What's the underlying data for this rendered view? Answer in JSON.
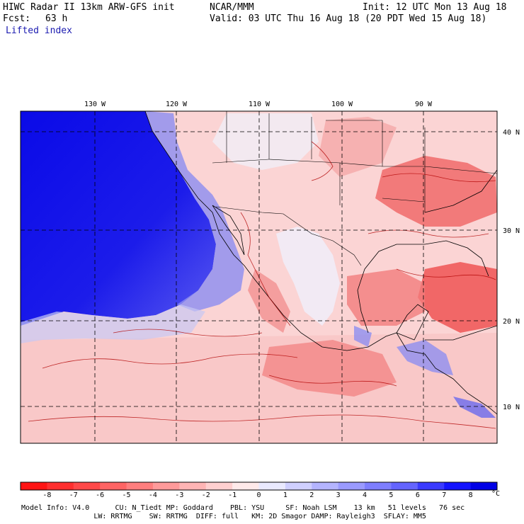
{
  "header": {
    "model": "HIWC Radar II 13km ARW-GFS init",
    "org": "NCAR/MMM",
    "init": "Init: 12 UTC Mon 13 Aug 18",
    "fcst_label": "Fcst:",
    "fcst_value": "63 h",
    "valid": "Valid: 03 UTC Thu 16 Aug 18 (20 PDT Wed 15 Aug 18)",
    "field": "Lifted index"
  },
  "map": {
    "lon_labels": [
      "130 W",
      "120 W",
      "110 W",
      "100 W",
      "90 W"
    ],
    "lat_labels": [
      "40 N",
      "30 N",
      "20 N",
      "10 N"
    ],
    "ocean_color": "#1a1ae6",
    "land_color": "#f5a0a0"
  },
  "colorbar": {
    "ticks": [
      "-8",
      "-7",
      "-6",
      "-5",
      "-4",
      "-3",
      "-2",
      "-1",
      "0",
      "1",
      "2",
      "3",
      "4",
      "5",
      "6",
      "7",
      "8"
    ],
    "unit": "°C",
    "colors": [
      "#ff1414",
      "#ff2e2e",
      "#ff4848",
      "#ff6464",
      "#ff7e7e",
      "#ff9a9a",
      "#ffb4b4",
      "#ffcfcf",
      "#ffeaea",
      "#eaeaff",
      "#cfcfff",
      "#b4b4ff",
      "#9a9aff",
      "#7e7eff",
      "#6464ff",
      "#3a3aff",
      "#1414ff",
      "#0000e6"
    ]
  },
  "footer": {
    "line1": "Model Info: V4.0      CU: N_Tiedt MP: Goddard    PBL: YSU     SF: Noah LSM    13 km   51 levels   76 sec",
    "line2": "                 LW: RRTMG    SW: RRTMG  DIFF: full   KM: 2D Smagor DAMP: Rayleigh3  SFLAY: MM5"
  }
}
